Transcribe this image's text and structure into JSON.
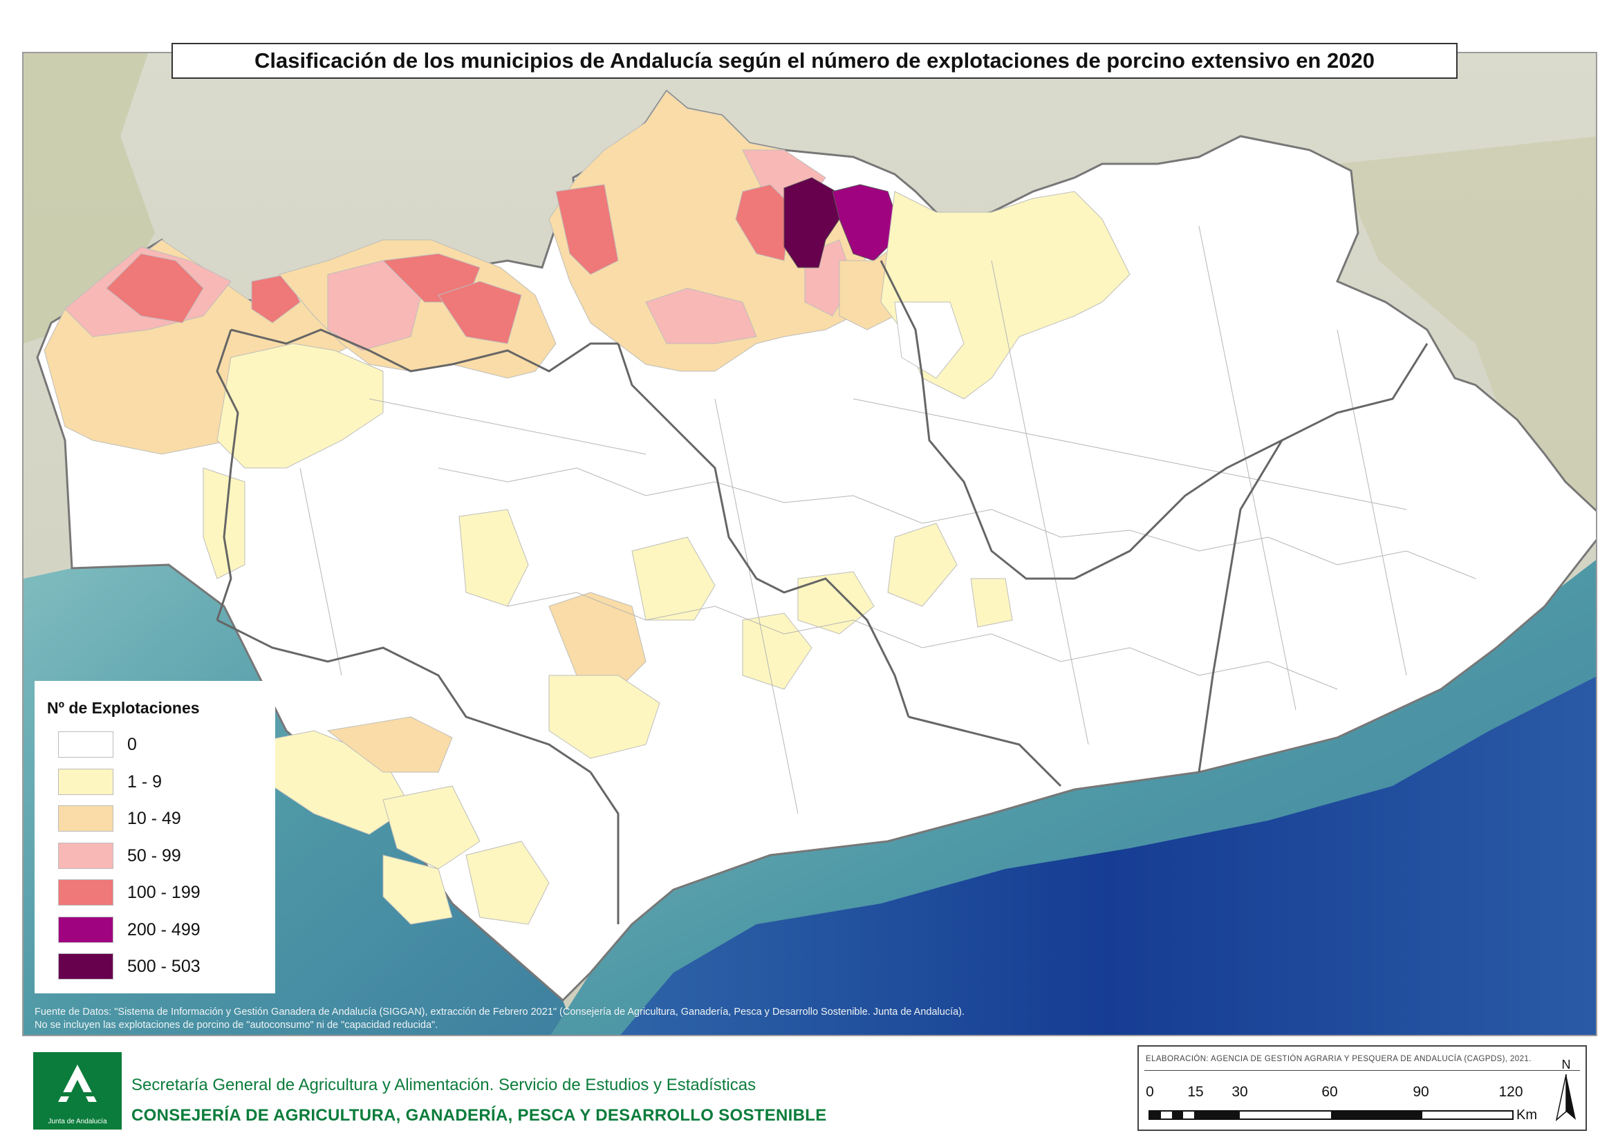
{
  "title": "Clasificación de los municipios de Andalucía según el número de explotaciones de porcino extensivo en 2020",
  "legend": {
    "title": "Nº de Explotaciones",
    "classes": [
      {
        "label": "0",
        "color": "#ffffff"
      },
      {
        "label": "1 - 9",
        "color": "#fdf6c0"
      },
      {
        "label": "10 - 49",
        "color": "#f9dca7"
      },
      {
        "label": "50 - 99",
        "color": "#f8b8b6"
      },
      {
        "label": "100 - 199",
        "color": "#ef7878"
      },
      {
        "label": "200 - 499",
        "color": "#a0037f"
      },
      {
        "label": "500 - 503",
        "color": "#67014e"
      }
    ]
  },
  "source": {
    "line1": "Fuente de Datos: \"Sistema de Información y Gestión Ganadera de Andalucía (SIGGAN), extracción de Febrero 2021\" (Consejería de Agricultura, Ganadería, Pesca y Desarrollo Sostenible. Junta de Andalucía).",
    "line2": "No se incluyen las explotaciones de porcino de \"autoconsumo\" ni de \"capacidad reducida\"."
  },
  "footer": {
    "logo_text": "Junta de Andalucía",
    "org_line1": "Secretaría General de Agricultura y Alimentación. Servicio de Estudios y Estadísticas",
    "org_line2": "CONSEJERÍA DE AGRICULTURA, GANADERÍA, PESCA Y DESARROLLO SOSTENIBLE"
  },
  "scale": {
    "elaboration": "ELABORACIÓN: AGENCIA DE GESTIÓN AGRARIA Y PESQUERA DE ANDALUCÍA (CAGPDS), 2021.",
    "ticks": [
      "0",
      "15",
      "30",
      "60",
      "90",
      "120"
    ],
    "unit": "Km",
    "north": "N"
  },
  "colors": {
    "land_bg": "#d6d6c6",
    "sea": "#5fa3a8",
    "deep_sea": "#1b4c9e",
    "border": "#808080",
    "logo_green": "#0b7c3b"
  }
}
